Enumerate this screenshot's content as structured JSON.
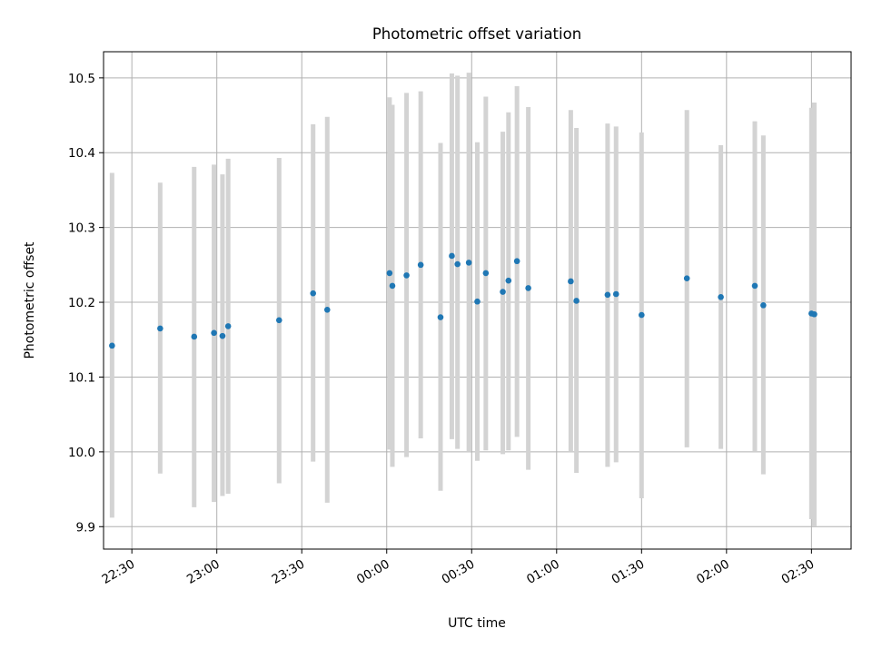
{
  "chart_data": {
    "type": "scatter",
    "title": "Photometric offset variation",
    "xlabel": "UTC time",
    "ylabel": "Photometric offset",
    "grid": true,
    "xlim": [
      "22:20",
      "02:44"
    ],
    "ylim": [
      9.87,
      10.535
    ],
    "x_ticks": [
      "22:30",
      "23:00",
      "23:30",
      "00:00",
      "00:30",
      "01:00",
      "01:30",
      "02:00",
      "02:30"
    ],
    "y_ticks": [
      "9.9",
      "10.0",
      "10.1",
      "10.2",
      "10.3",
      "10.4",
      "10.5"
    ],
    "colors": {
      "marker": "#1f77b4",
      "errorbar": "#d3d3d3"
    },
    "points": [
      {
        "time": "22:23",
        "y": 10.142,
        "lo": 9.912,
        "hi": 10.373
      },
      {
        "time": "22:40",
        "y": 10.165,
        "lo": 9.971,
        "hi": 10.36
      },
      {
        "time": "22:52",
        "y": 10.154,
        "lo": 9.926,
        "hi": 10.381
      },
      {
        "time": "22:59",
        "y": 10.159,
        "lo": 9.933,
        "hi": 10.384
      },
      {
        "time": "23:02",
        "y": 10.155,
        "lo": 9.941,
        "hi": 10.371
      },
      {
        "time": "23:04",
        "y": 10.168,
        "lo": 9.944,
        "hi": 10.392
      },
      {
        "time": "23:22",
        "y": 10.176,
        "lo": 9.958,
        "hi": 10.393
      },
      {
        "time": "23:34",
        "y": 10.212,
        "lo": 9.987,
        "hi": 10.438
      },
      {
        "time": "23:39",
        "y": 10.19,
        "lo": 9.932,
        "hi": 10.448
      },
      {
        "time": "00:01",
        "y": 10.239,
        "lo": 10.003,
        "hi": 10.474
      },
      {
        "time": "00:02",
        "y": 10.222,
        "lo": 9.98,
        "hi": 10.464
      },
      {
        "time": "00:07",
        "y": 10.236,
        "lo": 9.993,
        "hi": 10.48
      },
      {
        "time": "00:12",
        "y": 10.25,
        "lo": 10.018,
        "hi": 10.482
      },
      {
        "time": "00:19",
        "y": 10.18,
        "lo": 9.948,
        "hi": 10.413
      },
      {
        "time": "00:23",
        "y": 10.262,
        "lo": 10.017,
        "hi": 10.506
      },
      {
        "time": "00:25",
        "y": 10.251,
        "lo": 10.004,
        "hi": 10.503
      },
      {
        "time": "00:29",
        "y": 10.253,
        "lo": 10.0,
        "hi": 10.507
      },
      {
        "time": "00:32",
        "y": 10.201,
        "lo": 9.988,
        "hi": 10.414
      },
      {
        "time": "00:35",
        "y": 10.239,
        "lo": 10.002,
        "hi": 10.475
      },
      {
        "time": "00:41",
        "y": 10.214,
        "lo": 9.997,
        "hi": 10.428
      },
      {
        "time": "00:43",
        "y": 10.229,
        "lo": 10.002,
        "hi": 10.454
      },
      {
        "time": "00:46",
        "y": 10.255,
        "lo": 10.02,
        "hi": 10.489
      },
      {
        "time": "00:50",
        "y": 10.219,
        "lo": 9.976,
        "hi": 10.461
      },
      {
        "time": "01:05",
        "y": 10.228,
        "lo": 10.0,
        "hi": 10.457
      },
      {
        "time": "01:07",
        "y": 10.202,
        "lo": 9.972,
        "hi": 10.433
      },
      {
        "time": "01:18",
        "y": 10.21,
        "lo": 9.98,
        "hi": 10.439
      },
      {
        "time": "01:21",
        "y": 10.211,
        "lo": 9.986,
        "hi": 10.435
      },
      {
        "time": "01:30",
        "y": 10.183,
        "lo": 9.938,
        "hi": 10.427
      },
      {
        "time": "01:46",
        "y": 10.232,
        "lo": 10.006,
        "hi": 10.457
      },
      {
        "time": "01:58",
        "y": 10.207,
        "lo": 10.004,
        "hi": 10.41
      },
      {
        "time": "02:10",
        "y": 10.222,
        "lo": 10.0,
        "hi": 10.442
      },
      {
        "time": "02:13",
        "y": 10.196,
        "lo": 9.97,
        "hi": 10.423
      },
      {
        "time": "02:30",
        "y": 10.185,
        "lo": 9.91,
        "hi": 10.46
      },
      {
        "time": "02:31",
        "y": 10.184,
        "lo": 9.901,
        "hi": 10.467
      }
    ]
  }
}
